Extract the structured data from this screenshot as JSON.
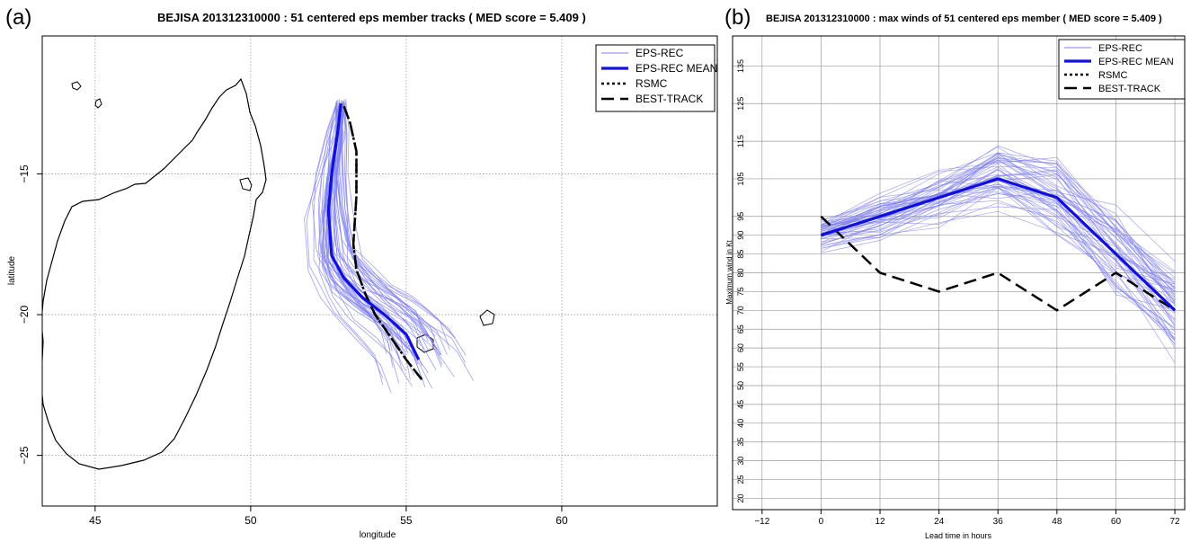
{
  "panels": {
    "a_label": "(a)",
    "b_label": "(b)"
  },
  "chart_data": [
    {
      "type": "line",
      "title": "BEJISA 201312310000 : 51 centered eps member tracks ( MED score = 5.409 )",
      "xlabel": "longitude",
      "ylabel": "latitude",
      "xlim": [
        43.3,
        65
      ],
      "ylim": [
        -26.8,
        -10.1
      ],
      "xticks": [
        45,
        50,
        55,
        60
      ],
      "yticks": [
        -15,
        -20,
        -25
      ],
      "grid": true,
      "legend": [
        "EPS-REC",
        "EPS-REC MEAN",
        "RSMC",
        "BEST-TRACK"
      ],
      "legend_placement": "top-right",
      "series": [
        {
          "name": "EPS-REC MEAN",
          "lon": [
            52.9,
            52.8,
            52.6,
            52.5,
            52.6,
            53.0,
            53.6,
            54.3,
            55.0,
            55.4
          ],
          "lat": [
            -12.5,
            -13.5,
            -15.0,
            -16.3,
            -17.9,
            -18.7,
            -19.4,
            -20.0,
            -20.7,
            -21.6
          ]
        },
        {
          "name": "RSMC",
          "lon": [
            53.0,
            53.2,
            53.4,
            53.4,
            53.3,
            53.4,
            53.7,
            54.0,
            54.5,
            55.0,
            55.5
          ],
          "lat": [
            -12.6,
            -13.2,
            -14.2,
            -15.8,
            -17.5,
            -18.4,
            -19.3,
            -20.0,
            -20.8,
            -21.6,
            -22.3
          ]
        },
        {
          "name": "BEST-TRACK",
          "lon": [
            53.0,
            53.2,
            53.4,
            53.4,
            53.3,
            53.4,
            53.7,
            54.0,
            54.5,
            55.0,
            55.5
          ],
          "lat": [
            -12.6,
            -13.2,
            -14.2,
            -15.8,
            -17.5,
            -18.4,
            -19.3,
            -20.0,
            -20.8,
            -21.6,
            -22.3
          ]
        }
      ]
    },
    {
      "type": "line",
      "title": "BEJISA 201312310000 : max winds of 51 centered eps member ( MED score = 5.409 )",
      "xlabel": "Lead time in hours",
      "ylabel": "Maximum wind in Kt",
      "xlim": [
        -18,
        74
      ],
      "ylim": [
        17,
        143
      ],
      "xticks": [
        -12,
        0,
        12,
        24,
        36,
        48,
        60,
        72
      ],
      "yticks": [
        20,
        25,
        30,
        35,
        40,
        45,
        50,
        55,
        60,
        65,
        70,
        75,
        80,
        85,
        90,
        95,
        105,
        115,
        125,
        135
      ],
      "grid": true,
      "legend": [
        "EPS-REC",
        "EPS-REC MEAN",
        "RSMC",
        "BEST-TRACK"
      ],
      "legend_placement": "top-right",
      "x": [
        0,
        12,
        24,
        36,
        48,
        60,
        72
      ],
      "series": [
        {
          "name": "EPS-REC MEAN",
          "values": [
            90,
            95,
            100,
            105,
            100,
            85,
            70
          ]
        },
        {
          "name": "RSMC",
          "values": [
            90,
            95,
            100,
            105,
            100,
            85,
            70
          ]
        },
        {
          "name": "BEST-TRACK",
          "values": [
            95,
            80,
            75,
            80,
            70,
            80,
            70
          ]
        }
      ]
    }
  ],
  "colors": {
    "ensemble": "#8080ee",
    "mean": "#1010dd",
    "best_track": "#000000",
    "grid": "#9a9a9a"
  }
}
